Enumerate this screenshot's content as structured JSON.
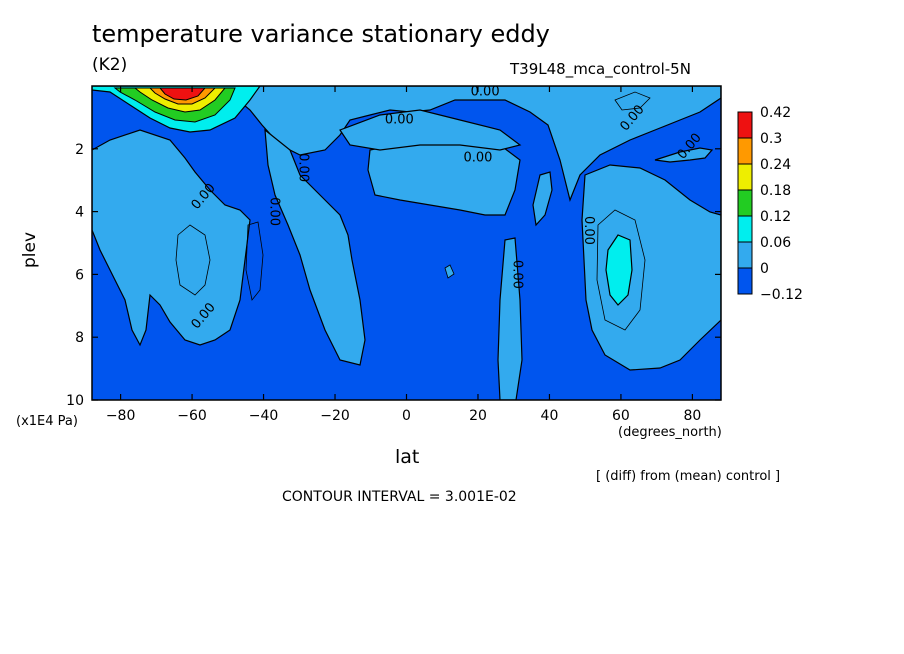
{
  "chart_data": {
    "type": "heatmap",
    "title": "temperature variance stationary eddy",
    "units": "(K2)",
    "experiment": "T39L48_mca_control-5N",
    "xlabel": "lat",
    "x_unit": "(degrees_north)",
    "ylabel": "plev",
    "y_unit": "(x1E4 Pa)",
    "note": "[ (diff) from (mean) control ]",
    "contour_interval": "CONTOUR INTERVAL = 3.001E-02",
    "xlim": [
      -88,
      88
    ],
    "ylim": [
      0.1,
      10
    ],
    "y_inverted": true,
    "x_ticks": [
      -80,
      -60,
      -40,
      -20,
      0,
      20,
      40,
      60,
      80
    ],
    "y_ticks": [
      2,
      4,
      6,
      8,
      10
    ],
    "colorbar": {
      "labels": [
        "0.42",
        "0.3",
        "0.24",
        "0.18",
        "0.12",
        "0.06",
        "0",
        "-0.12"
      ],
      "colors": [
        "#ee1111",
        "#ff9900",
        "#eeee00",
        "#22cc22",
        "#00eeee",
        "#33aaee",
        "#0055ee"
      ]
    },
    "contour_labels": [
      {
        "text": "0.00",
        "lat": -2,
        "plev": 1.2
      },
      {
        "text": "0.00",
        "lat": 22,
        "plev": 0.3
      },
      {
        "text": "0.00",
        "lat": 20,
        "plev": 2.4
      },
      {
        "text": "0.00",
        "lat": -30,
        "plev": 2.6
      },
      {
        "text": "0.00",
        "lat": -38,
        "plev": 4.0
      },
      {
        "text": "0.00",
        "lat": -56,
        "plev": 3.6
      },
      {
        "text": "0.00",
        "lat": -56,
        "plev": 7.4
      },
      {
        "text": "0.00",
        "lat": 30,
        "plev": 6.0
      },
      {
        "text": "0.00",
        "lat": 50,
        "plev": 4.6
      },
      {
        "text": "0.00",
        "lat": 64,
        "plev": 1.1
      },
      {
        "text": "0.00",
        "lat": 80,
        "plev": 2.0
      }
    ],
    "features": [
      {
        "desc": "positive maximum",
        "lat": -60,
        "plev": 0.3,
        "value": 0.42
      },
      {
        "desc": "local maximum",
        "lat": 60,
        "plev": 5.8,
        "value": 0.06
      },
      {
        "desc": "local minimum",
        "lat": -62,
        "plev": 5.5,
        "value": -0.06
      },
      {
        "desc": "local minimum",
        "lat": -42,
        "plev": 5.5,
        "value": -0.06
      },
      {
        "desc": "local minimum",
        "lat": 65,
        "plev": 0.5,
        "value": -0.03
      }
    ]
  }
}
